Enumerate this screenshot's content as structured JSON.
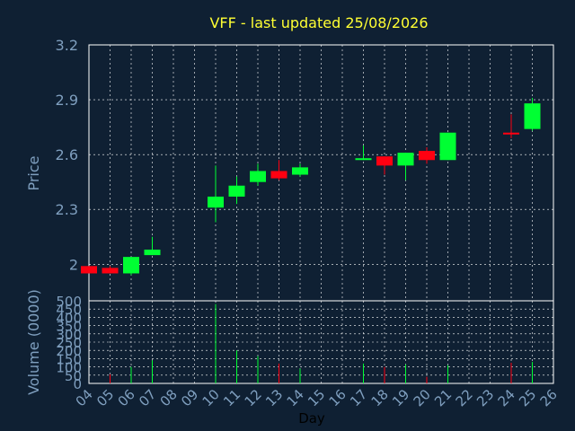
{
  "chart_data": [
    {
      "type": "candlestick",
      "title": "VFF - last updated 25/08/2026",
      "ylabel": "Price",
      "xlabel": "",
      "ylim": [
        1.8,
        3.2
      ],
      "yticks": [
        "2",
        "2.3",
        "2.6",
        "2.9",
        "3.2"
      ],
      "grid": true,
      "candles": [
        {
          "day": "04",
          "open": 1.99,
          "high": 1.99,
          "low": 1.95,
          "close": 1.95
        },
        {
          "day": "05",
          "open": 1.98,
          "high": 1.99,
          "low": 1.95,
          "close": 1.95
        },
        {
          "day": "06",
          "open": 1.95,
          "high": 2.04,
          "low": 1.94,
          "close": 2.04
        },
        {
          "day": "07",
          "open": 2.05,
          "high": 2.15,
          "low": 2.05,
          "close": 2.08
        },
        {
          "day": "10",
          "open": 2.31,
          "high": 2.54,
          "low": 2.23,
          "close": 2.37
        },
        {
          "day": "11",
          "open": 2.37,
          "high": 2.48,
          "low": 2.33,
          "close": 2.43
        },
        {
          "day": "12",
          "open": 2.45,
          "high": 2.55,
          "low": 2.43,
          "close": 2.51
        },
        {
          "day": "13",
          "open": 2.51,
          "high": 2.57,
          "low": 2.46,
          "close": 2.47
        },
        {
          "day": "14",
          "open": 2.49,
          "high": 2.55,
          "low": 2.48,
          "close": 2.53
        },
        {
          "day": "17",
          "open": 2.57,
          "high": 2.65,
          "low": 2.57,
          "close": 2.58
        },
        {
          "day": "18",
          "open": 2.59,
          "high": 2.59,
          "low": 2.49,
          "close": 2.54
        },
        {
          "day": "19",
          "open": 2.54,
          "high": 2.61,
          "low": 2.46,
          "close": 2.61
        },
        {
          "day": "20",
          "open": 2.62,
          "high": 2.64,
          "low": 2.55,
          "close": 2.57
        },
        {
          "day": "21",
          "open": 2.57,
          "high": 2.72,
          "low": 2.57,
          "close": 2.72
        },
        {
          "day": "24",
          "open": 2.72,
          "high": 2.82,
          "low": 2.69,
          "close": 2.71
        },
        {
          "day": "25",
          "open": 2.74,
          "high": 2.91,
          "low": 2.73,
          "close": 2.88
        }
      ]
    },
    {
      "type": "bar",
      "ylabel": "Volume (0000)",
      "xlabel": "Day",
      "ylim": [
        0,
        500
      ],
      "yticks": [
        "0",
        "50",
        "100",
        "150",
        "200",
        "250",
        "300",
        "350",
        "400",
        "450",
        "500"
      ],
      "categories": [
        "04",
        "05",
        "06",
        "07",
        "08",
        "09",
        "10",
        "11",
        "12",
        "13",
        "14",
        "15",
        "16",
        "17",
        "18",
        "19",
        "20",
        "21",
        "22",
        "23",
        "24",
        "25",
        "26"
      ],
      "values": [
        0,
        55,
        100,
        140,
        0,
        0,
        480,
        200,
        165,
        120,
        90,
        0,
        0,
        120,
        100,
        115,
        40,
        110,
        0,
        0,
        125,
        130,
        0
      ],
      "direction": [
        "",
        "down",
        "up",
        "up",
        "",
        "",
        "up",
        "up",
        "up",
        "down",
        "up",
        "",
        "",
        "up",
        "down",
        "up",
        "down",
        "up",
        "",
        "",
        "down",
        "up",
        ""
      ]
    }
  ],
  "colors": {
    "background": "#0f2033",
    "grid": "#ffffff",
    "axis": "#7f9fbf",
    "title": "#ffff33",
    "up": "#00ff33",
    "down": "#ff0011"
  }
}
